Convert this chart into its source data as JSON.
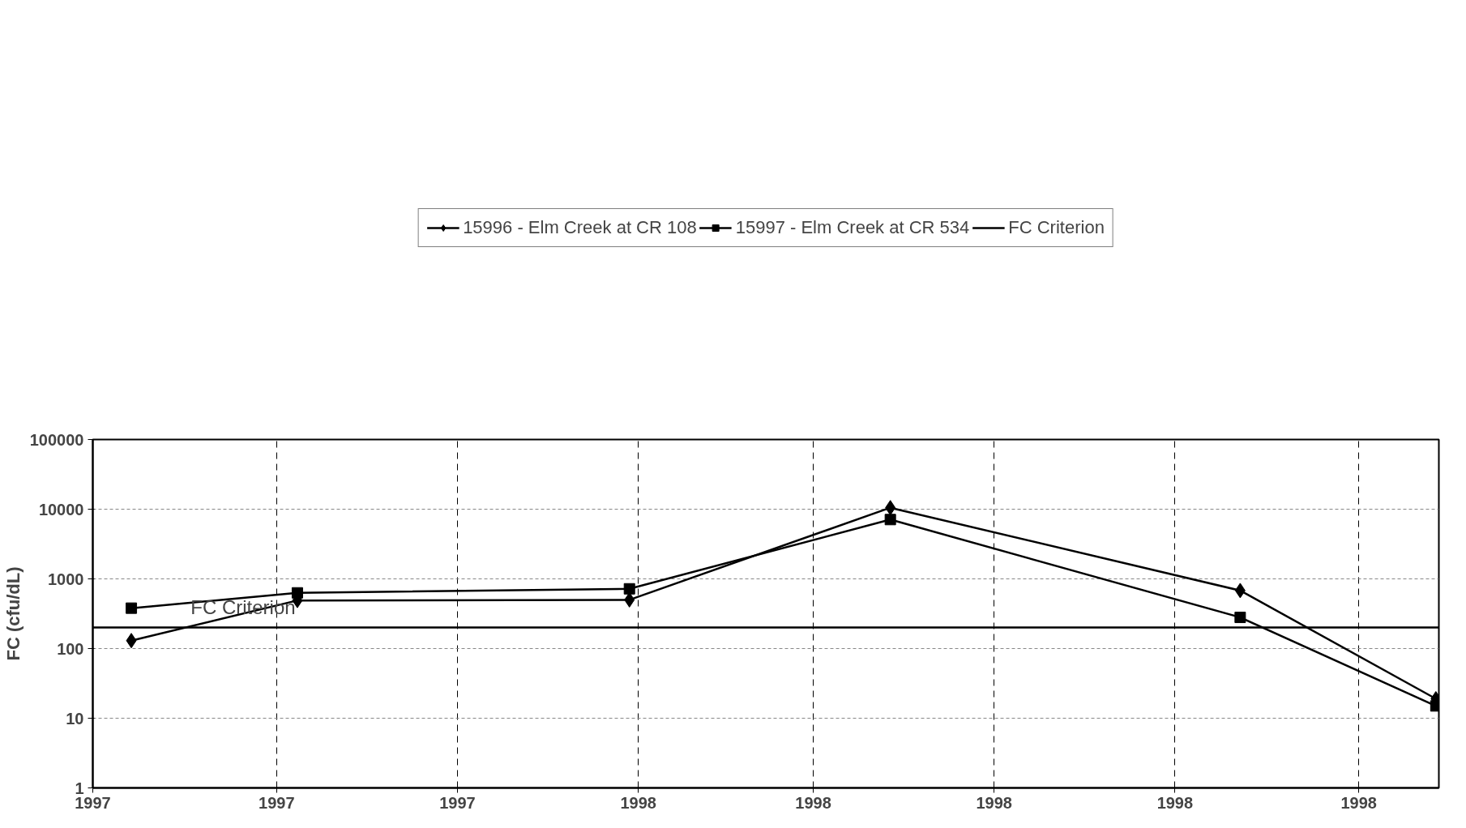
{
  "chart_data": {
    "type": "line",
    "ylabel": "FC (cfu/dL)",
    "log": "y",
    "grid": true,
    "legend": "top",
    "line_style": "solid",
    "xlim": [
      "1997-07-01",
      "1998-09-28"
    ],
    "xticks": [
      {
        "value": "1997-07-01",
        "label": "1997"
      },
      {
        "value": "1997-09-01",
        "label": "1997"
      },
      {
        "value": "1997-11-01",
        "label": "1997"
      },
      {
        "value": "1998-01-01",
        "label": "1998"
      },
      {
        "value": "1998-03-01",
        "label": "1998"
      },
      {
        "value": "1998-05-01",
        "label": "1998"
      },
      {
        "value": "1998-07-01",
        "label": "1998"
      },
      {
        "value": "1998-09-01",
        "label": "1998"
      }
    ],
    "ylim": [
      1,
      100000
    ],
    "yticks": [
      1,
      10,
      100,
      1000,
      10000,
      100000
    ],
    "series": [
      {
        "name": "15996 - Elm Creek at CR 108",
        "color": "#000000",
        "marker": "diamond",
        "x": [
          "1997-07-14",
          "1997-09-08",
          "1997-12-29",
          "1998-03-27",
          "1998-07-23",
          "1998-09-27"
        ],
        "values": [
          130,
          490,
          500,
          10500,
          680,
          19
        ]
      },
      {
        "name": "15997 - Elm Creek at CR 534",
        "color": "#000000",
        "marker": "square",
        "x": [
          "1997-07-14",
          "1997-09-08",
          "1997-12-29",
          "1998-03-27",
          "1998-07-23",
          "1998-09-27"
        ],
        "values": [
          380,
          630,
          720,
          7100,
          280,
          15
        ]
      },
      {
        "name": "FC Criterion",
        "color": "#000000",
        "marker": "none",
        "x": [
          "1997-07-01",
          "1998-09-28"
        ],
        "values": [
          200,
          200
        ]
      }
    ],
    "annotations": [
      {
        "text": "FC Criterion",
        "x": "1997-08-03",
        "y": 200
      }
    ]
  }
}
